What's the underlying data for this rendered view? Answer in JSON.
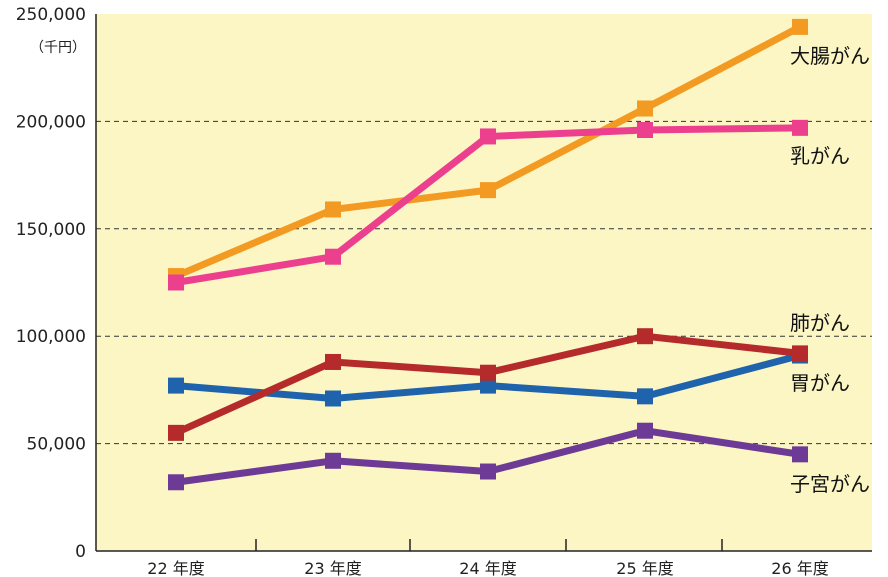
{
  "chart_data": {
    "type": "line",
    "categories": [
      "22 年度",
      "23 年度",
      "24 年度",
      "25 年度",
      "26 年度"
    ],
    "y_unit": "（千円）",
    "y_ticks": [
      "0",
      "50,000",
      "100,000",
      "150,000",
      "200,000",
      "250,000"
    ],
    "ylim": [
      0,
      250000
    ],
    "grid": "dashed horizontal",
    "background_color": "#fbf6c4",
    "series": [
      {
        "name": "大腸がん",
        "color": "#f39a22",
        "values": [
          128000,
          159000,
          168000,
          206000,
          244000
        ]
      },
      {
        "name": "乳がん",
        "color": "#ec3f8e",
        "values": [
          125000,
          137000,
          193000,
          196000,
          197000
        ]
      },
      {
        "name": "肺がん",
        "color": "#1f63ad",
        "values": [
          77000,
          71000,
          77000,
          72000,
          91000
        ]
      },
      {
        "name": "胃がん",
        "color": "#b52a2a",
        "values": [
          55000,
          88000,
          83000,
          100000,
          92000
        ]
      },
      {
        "name": "子宮がん",
        "color": "#6d3b96",
        "values": [
          32000,
          42000,
          37000,
          56000,
          45000
        ]
      }
    ]
  }
}
